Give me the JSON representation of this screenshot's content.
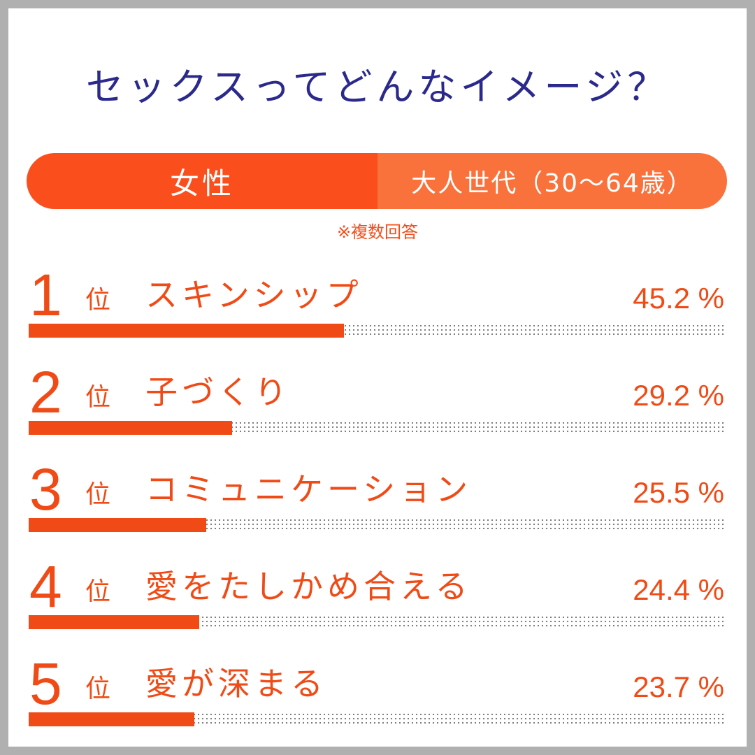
{
  "chart_data": {
    "type": "bar",
    "title": "セックスってどんなイメージ？",
    "segment": {
      "gender": "女性",
      "age_group": "大人世代（30～64歳）"
    },
    "note": "※複数回答",
    "rank_suffix": "位",
    "unit": "%",
    "ylim": [
      0,
      100
    ],
    "categories": [
      "スキンシップ",
      "子づくり",
      "コミュニケーション",
      "愛をたしかめ合える",
      "愛が深まる"
    ],
    "ranks": [
      "1",
      "2",
      "3",
      "4",
      "5"
    ],
    "values": [
      45.2,
      29.2,
      25.5,
      24.4,
      23.7
    ],
    "value_labels": [
      "45.2 %",
      "29.2 %",
      "25.5 %",
      "24.4 %",
      "23.7 %"
    ],
    "colors": {
      "title": "#2b2a8c",
      "accent": "#f04b16",
      "pill_left": "#fb4e1d",
      "pill_right": "#f9723c"
    }
  }
}
